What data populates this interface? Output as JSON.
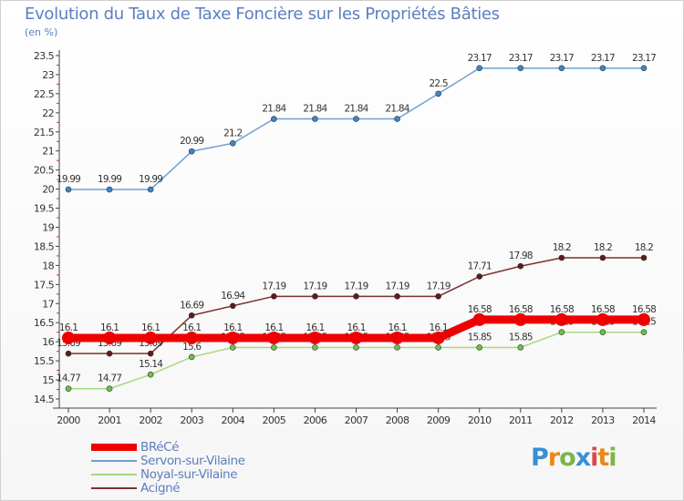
{
  "title": "Evolution du Taux de Taxe Foncière sur les Propriétés Bâties",
  "unit": "(en %)",
  "logo": {
    "text": "Proxiti",
    "colors": [
      "#3a8fd6",
      "#e8891b",
      "#7ab648",
      "#3a8fd6",
      "#d94a4a",
      "#e8891b",
      "#7ab648"
    ]
  },
  "chart_data": {
    "type": "line",
    "x": [
      "2000",
      "2001",
      "2002",
      "2003",
      "2004",
      "2005",
      "2006",
      "2007",
      "2008",
      "2009",
      "2010",
      "2011",
      "2012",
      "2013",
      "2014"
    ],
    "y_ticks": [
      "14.5",
      "15",
      "15.5",
      "16",
      "16.5",
      "17",
      "17.5",
      "18",
      "18.5",
      "19",
      "19.5",
      "20",
      "20.5",
      "21",
      "21.5",
      "22",
      "22.5",
      "23",
      "23.5"
    ],
    "ylim": [
      14.5,
      23.5
    ],
    "grid": false,
    "legend_position": "bottom-left",
    "series": [
      {
        "name": "Servon-sur-Vilaine",
        "color": "#6fa0d2",
        "marker_color": "#3d87c7",
        "values": [
          19.99,
          19.99,
          19.99,
          20.99,
          21.2,
          21.84,
          21.84,
          21.84,
          21.84,
          22.5,
          23.17,
          23.17,
          23.17,
          23.17,
          23.17
        ],
        "labels": [
          "19.99",
          "19.99",
          "19.99",
          "20.99",
          "21.2",
          "21.84",
          "21.84",
          "21.84",
          "21.84",
          "22.5",
          "23.17",
          "23.17",
          "23.17",
          "23.17",
          "23.17"
        ]
      },
      {
        "name": "Acigné",
        "color": "#7b3030",
        "marker_color": "#5e1a1a",
        "values": [
          15.69,
          15.69,
          15.69,
          16.69,
          16.94,
          17.19,
          17.19,
          17.19,
          17.19,
          17.19,
          17.71,
          17.98,
          18.2,
          18.2,
          18.2
        ],
        "labels": [
          "15.69",
          "15.69",
          "15.69",
          "16.69",
          "16.94",
          "17.19",
          "17.19",
          "17.19",
          "17.19",
          "17.19",
          "17.71",
          "17.98",
          "18.2",
          "18.2",
          "18.2"
        ]
      },
      {
        "name": "Noyal-sur-Vilaine",
        "color": "#a8d87f",
        "marker_color": "#6cc04a",
        "values": [
          14.77,
          14.77,
          15.14,
          15.6,
          15.85,
          15.85,
          15.85,
          15.85,
          15.85,
          15.85,
          15.85,
          15.85,
          16.25,
          16.25,
          16.25
        ],
        "labels": [
          "14.77",
          "14.77",
          "15.14",
          "15.6",
          "15.85",
          "15.85",
          "15.85",
          "15.85",
          "15.85",
          "15.85",
          "15.85",
          "15.85",
          "16.25",
          "16.25",
          "16.25"
        ]
      },
      {
        "name": "BRéCé",
        "color": "#ee0000",
        "marker_color": "#ee0000",
        "thick": true,
        "values": [
          16.1,
          16.1,
          16.1,
          16.1,
          16.1,
          16.1,
          16.1,
          16.1,
          16.1,
          16.1,
          16.58,
          16.58,
          16.58,
          16.58,
          16.58
        ],
        "labels": [
          "16.1",
          "16.1",
          "16.1",
          "16.1",
          "16.1",
          "16.1",
          "16.1",
          "16.1",
          "16.1",
          "16.1",
          "16.58",
          "16.58",
          "16.58",
          "16.58",
          "16.58"
        ]
      }
    ],
    "legend": [
      {
        "name": "BRéCé",
        "color": "#ee0000",
        "thick": true
      },
      {
        "name": "Servon-sur-Vilaine",
        "color": "#6fa0d2"
      },
      {
        "name": "Noyal-sur-Vilaine",
        "color": "#a8d87f"
      },
      {
        "name": "Acigné",
        "color": "#7b3030"
      }
    ]
  }
}
